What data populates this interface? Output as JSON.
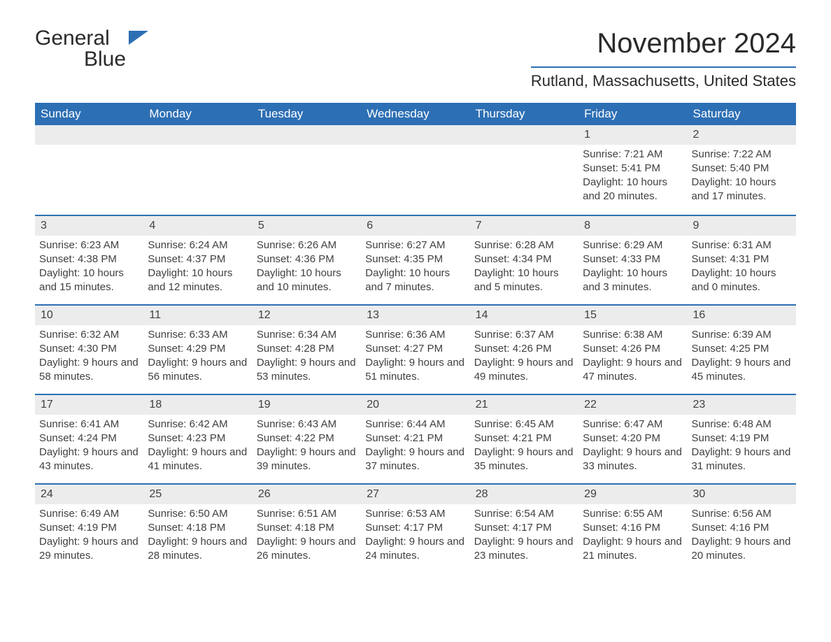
{
  "brand": {
    "word1": "General",
    "word2": "Blue"
  },
  "header": {
    "month_title": "November 2024",
    "location": "Rutland, Massachusetts, United States"
  },
  "colors": {
    "brand_blue": "#2d6fb4",
    "header_bg": "#2d6fb4",
    "header_fg": "#ffffff",
    "daynum_bg": "#ececec",
    "text": "#333333",
    "page_bg": "#ffffff"
  },
  "typography": {
    "month_title_fontsize": 40,
    "location_fontsize": 22,
    "dow_fontsize": 17,
    "body_fontsize": 15
  },
  "labels": {
    "sunrise_prefix": "Sunrise: ",
    "sunset_prefix": "Sunset: ",
    "daylight_prefix": "Daylight: "
  },
  "days_of_week": [
    "Sunday",
    "Monday",
    "Tuesday",
    "Wednesday",
    "Thursday",
    "Friday",
    "Saturday"
  ],
  "weeks": [
    [
      null,
      null,
      null,
      null,
      null,
      {
        "n": "1",
        "sunrise": "7:21 AM",
        "sunset": "5:41 PM",
        "daylight": "10 hours and 20 minutes."
      },
      {
        "n": "2",
        "sunrise": "7:22 AM",
        "sunset": "5:40 PM",
        "daylight": "10 hours and 17 minutes."
      }
    ],
    [
      {
        "n": "3",
        "sunrise": "6:23 AM",
        "sunset": "4:38 PM",
        "daylight": "10 hours and 15 minutes."
      },
      {
        "n": "4",
        "sunrise": "6:24 AM",
        "sunset": "4:37 PM",
        "daylight": "10 hours and 12 minutes."
      },
      {
        "n": "5",
        "sunrise": "6:26 AM",
        "sunset": "4:36 PM",
        "daylight": "10 hours and 10 minutes."
      },
      {
        "n": "6",
        "sunrise": "6:27 AM",
        "sunset": "4:35 PM",
        "daylight": "10 hours and 7 minutes."
      },
      {
        "n": "7",
        "sunrise": "6:28 AM",
        "sunset": "4:34 PM",
        "daylight": "10 hours and 5 minutes."
      },
      {
        "n": "8",
        "sunrise": "6:29 AM",
        "sunset": "4:33 PM",
        "daylight": "10 hours and 3 minutes."
      },
      {
        "n": "9",
        "sunrise": "6:31 AM",
        "sunset": "4:31 PM",
        "daylight": "10 hours and 0 minutes."
      }
    ],
    [
      {
        "n": "10",
        "sunrise": "6:32 AM",
        "sunset": "4:30 PM",
        "daylight": "9 hours and 58 minutes."
      },
      {
        "n": "11",
        "sunrise": "6:33 AM",
        "sunset": "4:29 PM",
        "daylight": "9 hours and 56 minutes."
      },
      {
        "n": "12",
        "sunrise": "6:34 AM",
        "sunset": "4:28 PM",
        "daylight": "9 hours and 53 minutes."
      },
      {
        "n": "13",
        "sunrise": "6:36 AM",
        "sunset": "4:27 PM",
        "daylight": "9 hours and 51 minutes."
      },
      {
        "n": "14",
        "sunrise": "6:37 AM",
        "sunset": "4:26 PM",
        "daylight": "9 hours and 49 minutes."
      },
      {
        "n": "15",
        "sunrise": "6:38 AM",
        "sunset": "4:26 PM",
        "daylight": "9 hours and 47 minutes."
      },
      {
        "n": "16",
        "sunrise": "6:39 AM",
        "sunset": "4:25 PM",
        "daylight": "9 hours and 45 minutes."
      }
    ],
    [
      {
        "n": "17",
        "sunrise": "6:41 AM",
        "sunset": "4:24 PM",
        "daylight": "9 hours and 43 minutes."
      },
      {
        "n": "18",
        "sunrise": "6:42 AM",
        "sunset": "4:23 PM",
        "daylight": "9 hours and 41 minutes."
      },
      {
        "n": "19",
        "sunrise": "6:43 AM",
        "sunset": "4:22 PM",
        "daylight": "9 hours and 39 minutes."
      },
      {
        "n": "20",
        "sunrise": "6:44 AM",
        "sunset": "4:21 PM",
        "daylight": "9 hours and 37 minutes."
      },
      {
        "n": "21",
        "sunrise": "6:45 AM",
        "sunset": "4:21 PM",
        "daylight": "9 hours and 35 minutes."
      },
      {
        "n": "22",
        "sunrise": "6:47 AM",
        "sunset": "4:20 PM",
        "daylight": "9 hours and 33 minutes."
      },
      {
        "n": "23",
        "sunrise": "6:48 AM",
        "sunset": "4:19 PM",
        "daylight": "9 hours and 31 minutes."
      }
    ],
    [
      {
        "n": "24",
        "sunrise": "6:49 AM",
        "sunset": "4:19 PM",
        "daylight": "9 hours and 29 minutes."
      },
      {
        "n": "25",
        "sunrise": "6:50 AM",
        "sunset": "4:18 PM",
        "daylight": "9 hours and 28 minutes."
      },
      {
        "n": "26",
        "sunrise": "6:51 AM",
        "sunset": "4:18 PM",
        "daylight": "9 hours and 26 minutes."
      },
      {
        "n": "27",
        "sunrise": "6:53 AM",
        "sunset": "4:17 PM",
        "daylight": "9 hours and 24 minutes."
      },
      {
        "n": "28",
        "sunrise": "6:54 AM",
        "sunset": "4:17 PM",
        "daylight": "9 hours and 23 minutes."
      },
      {
        "n": "29",
        "sunrise": "6:55 AM",
        "sunset": "4:16 PM",
        "daylight": "9 hours and 21 minutes."
      },
      {
        "n": "30",
        "sunrise": "6:56 AM",
        "sunset": "4:16 PM",
        "daylight": "9 hours and 20 minutes."
      }
    ]
  ]
}
